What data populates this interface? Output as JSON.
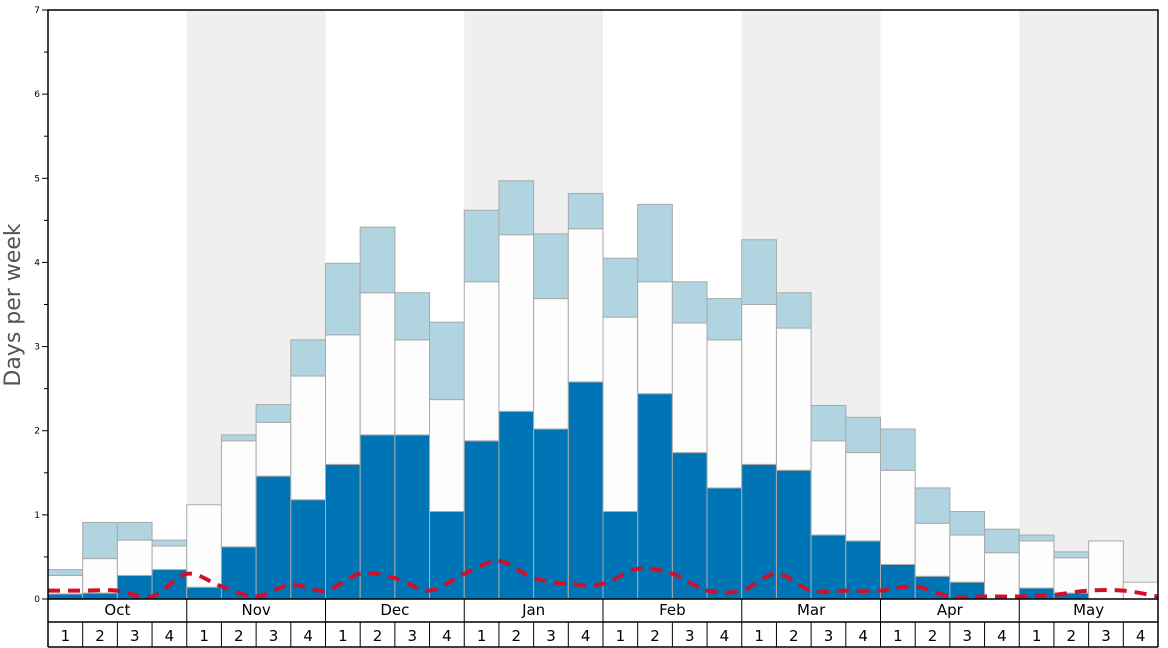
{
  "chart_data": {
    "type": "bar",
    "ylabel": "Days per week",
    "ylim": [
      0,
      7
    ],
    "yticks": [
      "0",
      "1",
      "2",
      "3",
      "4",
      "5",
      "6",
      "7"
    ],
    "months": [
      "Oct",
      "Nov",
      "Dec",
      "Jan",
      "Feb",
      "Mar",
      "Apr",
      "May"
    ],
    "weeks": [
      "1",
      "2",
      "3",
      "4"
    ],
    "shaded_months": [
      "Nov",
      "Jan",
      "Mar",
      "May"
    ],
    "colors": {
      "bottom": "#0075b5",
      "middle": "#fdfdfd",
      "top": "#b0d4e0",
      "line": "#d0102a",
      "shade": "#efefef",
      "bar_edge": "#aaaaaa"
    },
    "series": [
      {
        "values": [
          0.06,
          0.07,
          0.28,
          0.35,
          0.14,
          0.62,
          1.46,
          1.18,
          1.6,
          1.95,
          1.95,
          1.04,
          1.88,
          2.23,
          2.02,
          2.58,
          1.04,
          2.44,
          1.74,
          1.32,
          1.6,
          1.53,
          0.76,
          0.69,
          0.41,
          0.27,
          0.2,
          0.0,
          0.13,
          0.07,
          0.0,
          0.0
        ]
      },
      {
        "values": [
          0.22,
          0.41,
          0.42,
          0.28,
          0.98,
          1.26,
          0.64,
          1.47,
          1.54,
          1.69,
          1.13,
          1.33,
          1.89,
          2.1,
          1.55,
          1.82,
          2.31,
          1.33,
          1.54,
          1.76,
          1.9,
          1.69,
          1.12,
          1.05,
          1.12,
          0.63,
          0.56,
          0.55,
          0.56,
          0.42,
          0.69,
          0.2
        ]
      },
      {
        "values": [
          0.07,
          0.43,
          0.21,
          0.07,
          0.0,
          0.07,
          0.21,
          0.43,
          0.85,
          0.78,
          0.56,
          0.92,
          0.85,
          0.64,
          0.77,
          0.42,
          0.7,
          0.92,
          0.49,
          0.49,
          0.77,
          0.42,
          0.42,
          0.42,
          0.49,
          0.42,
          0.28,
          0.28,
          0.07,
          0.07,
          0.0,
          0.0
        ]
      },
      {
        "type": "line",
        "values": [
          0.1,
          0.1,
          0.1,
          0.03,
          0.3,
          0.15,
          0.03,
          0.17,
          0.1,
          0.3,
          0.25,
          0.1,
          0.3,
          0.45,
          0.25,
          0.18,
          0.18,
          0.36,
          0.3,
          0.1,
          0.1,
          0.3,
          0.1,
          0.1,
          0.1,
          0.15,
          0.03,
          0.03,
          0.03,
          0.05,
          0.1,
          0.1,
          0.03
        ]
      }
    ]
  }
}
